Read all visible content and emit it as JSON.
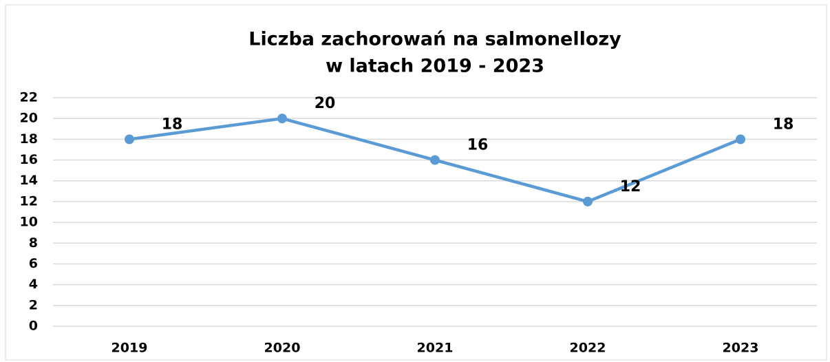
{
  "chart_data": {
    "type": "line",
    "title": [
      "Liczba zachorowań na salmonellozy",
      "w latach 2019 - 2023"
    ],
    "categories": [
      "2019",
      "2020",
      "2021",
      "2022",
      "2023"
    ],
    "series": [
      {
        "color": "#5b9bd5",
        "values": [
          18,
          20,
          16,
          12,
          18
        ]
      }
    ],
    "ylim": [
      0,
      22
    ],
    "yticks": [
      0,
      2,
      4,
      6,
      8,
      10,
      12,
      14,
      16,
      18,
      20,
      22
    ],
    "grid": true,
    "data_labels": true
  }
}
